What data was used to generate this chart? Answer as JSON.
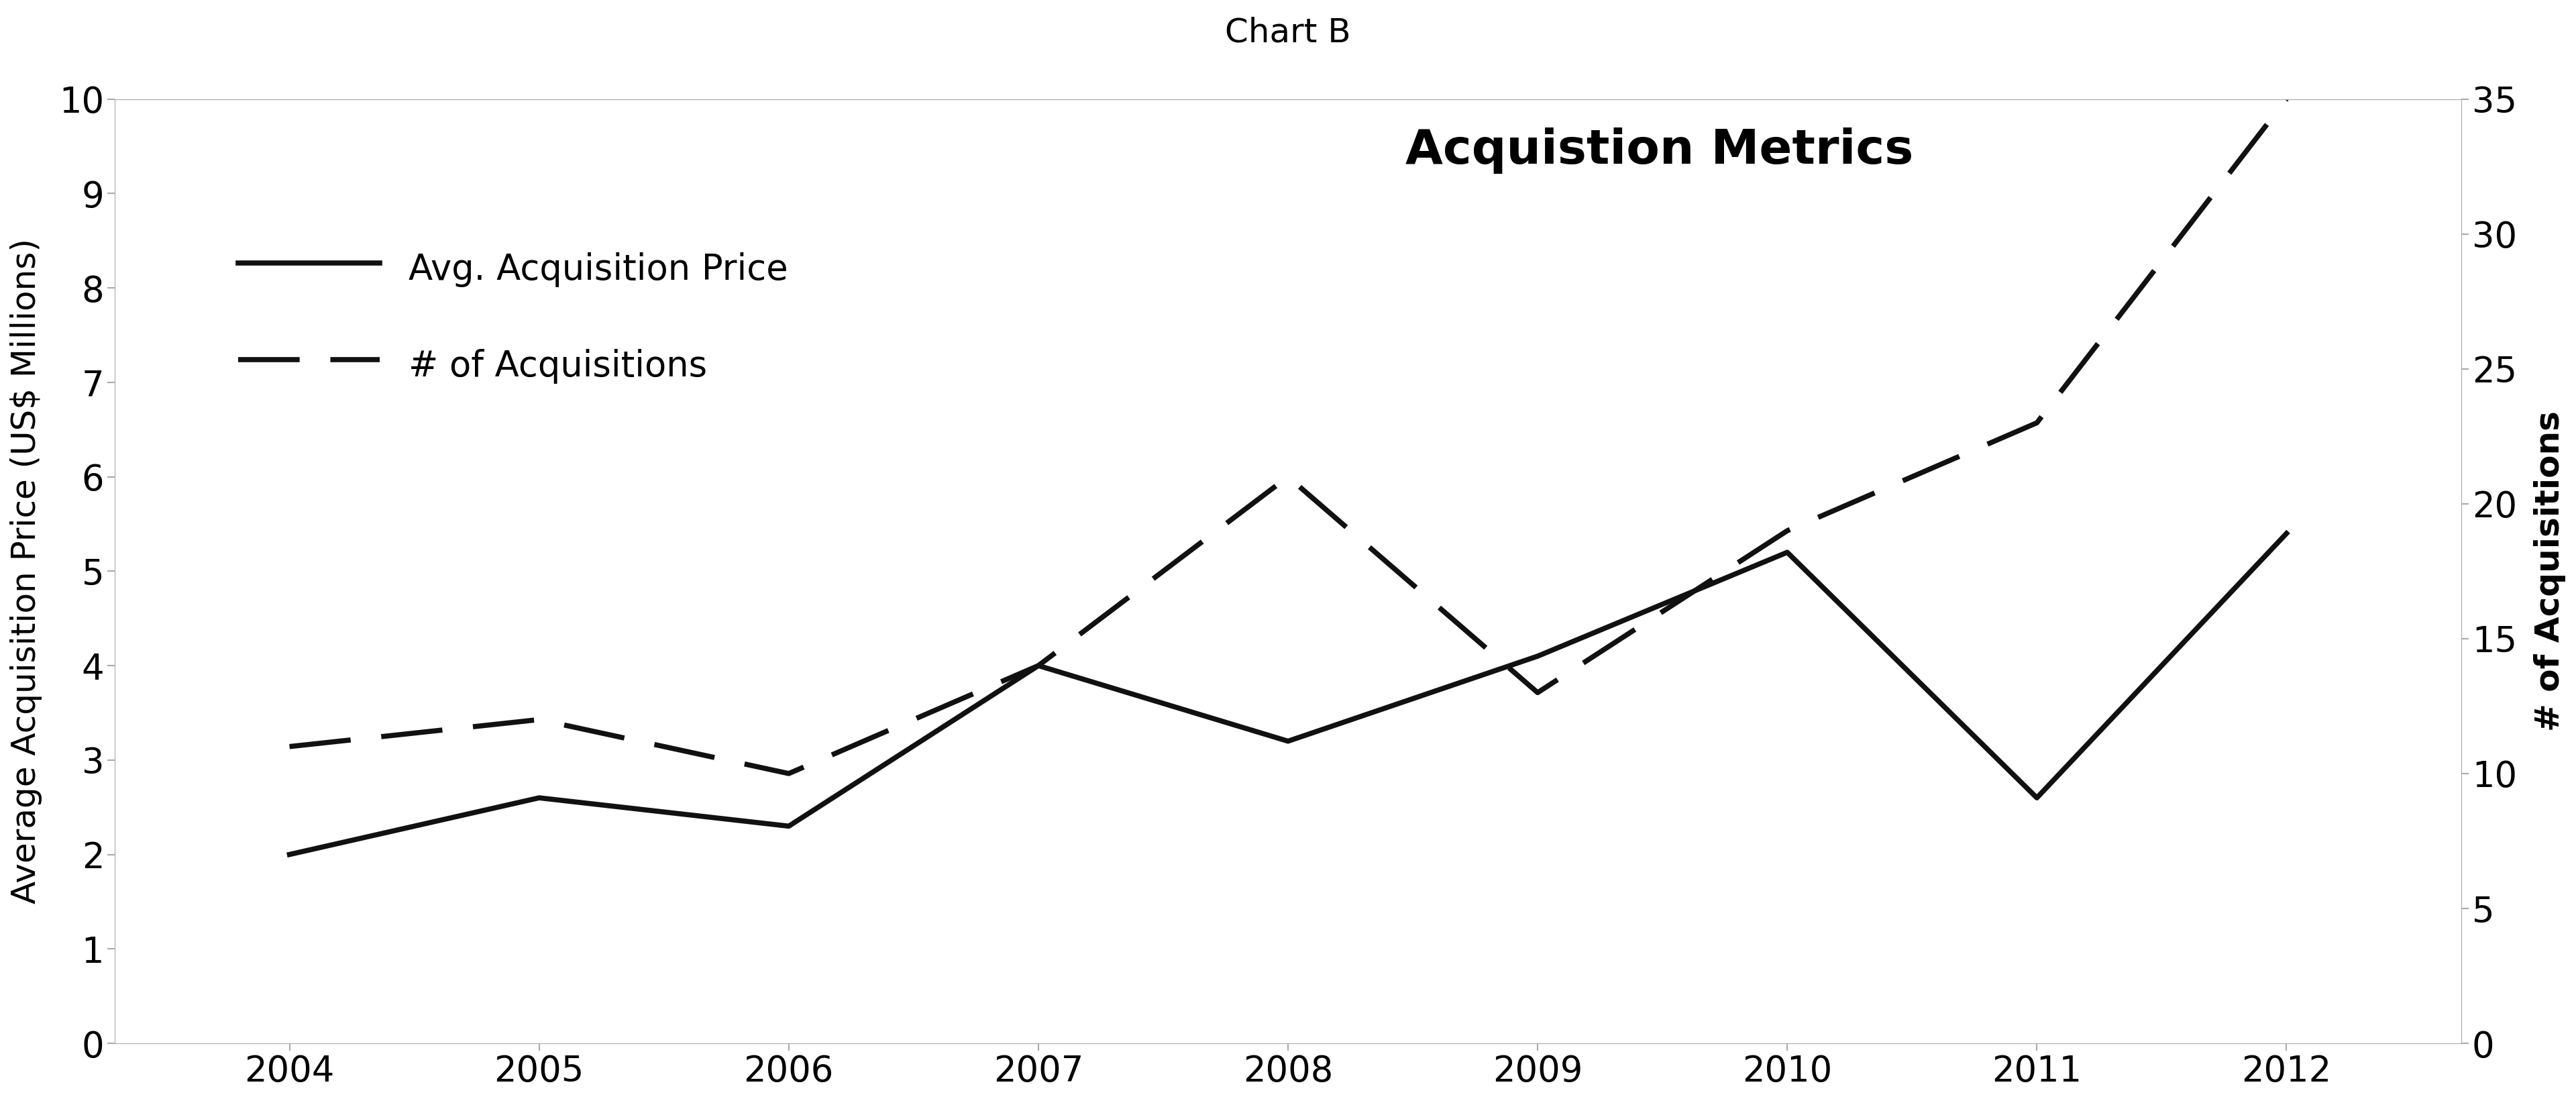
{
  "title_above": "Chart B",
  "chart_title": "Acquistion Metrics",
  "years": [
    2004,
    2005,
    2006,
    2007,
    2008,
    2009,
    2010,
    2011,
    2012
  ],
  "avg_price": [
    2.0,
    2.6,
    2.3,
    4.0,
    3.2,
    4.1,
    5.2,
    2.6,
    5.4
  ],
  "num_acquisitions": [
    11,
    12,
    10,
    14,
    21,
    13,
    19,
    23,
    35
  ],
  "ylabel_left": "Average Acquisition Price (US$ Millions)",
  "ylabel_right": "# of Acquisitions",
  "ylim_left": [
    0,
    10
  ],
  "ylim_right": [
    0,
    35
  ],
  "yticks_left": [
    0,
    1,
    2,
    3,
    4,
    5,
    6,
    7,
    8,
    9,
    10
  ],
  "yticks_right": [
    0,
    5,
    10,
    15,
    20,
    25,
    30,
    35
  ],
  "legend_solid": "Avg. Acquisition Price",
  "legend_dashed": "# of Acquisitions",
  "line_color": "#111111",
  "background_color": "#ffffff",
  "spine_color": "#aaaaaa",
  "title_fontsize": 36,
  "chart_title_fontsize": 52,
  "label_fontsize": 36,
  "tick_fontsize": 38,
  "legend_fontsize": 38,
  "linewidth": 5.5,
  "dash_pattern": [
    12,
    6
  ]
}
